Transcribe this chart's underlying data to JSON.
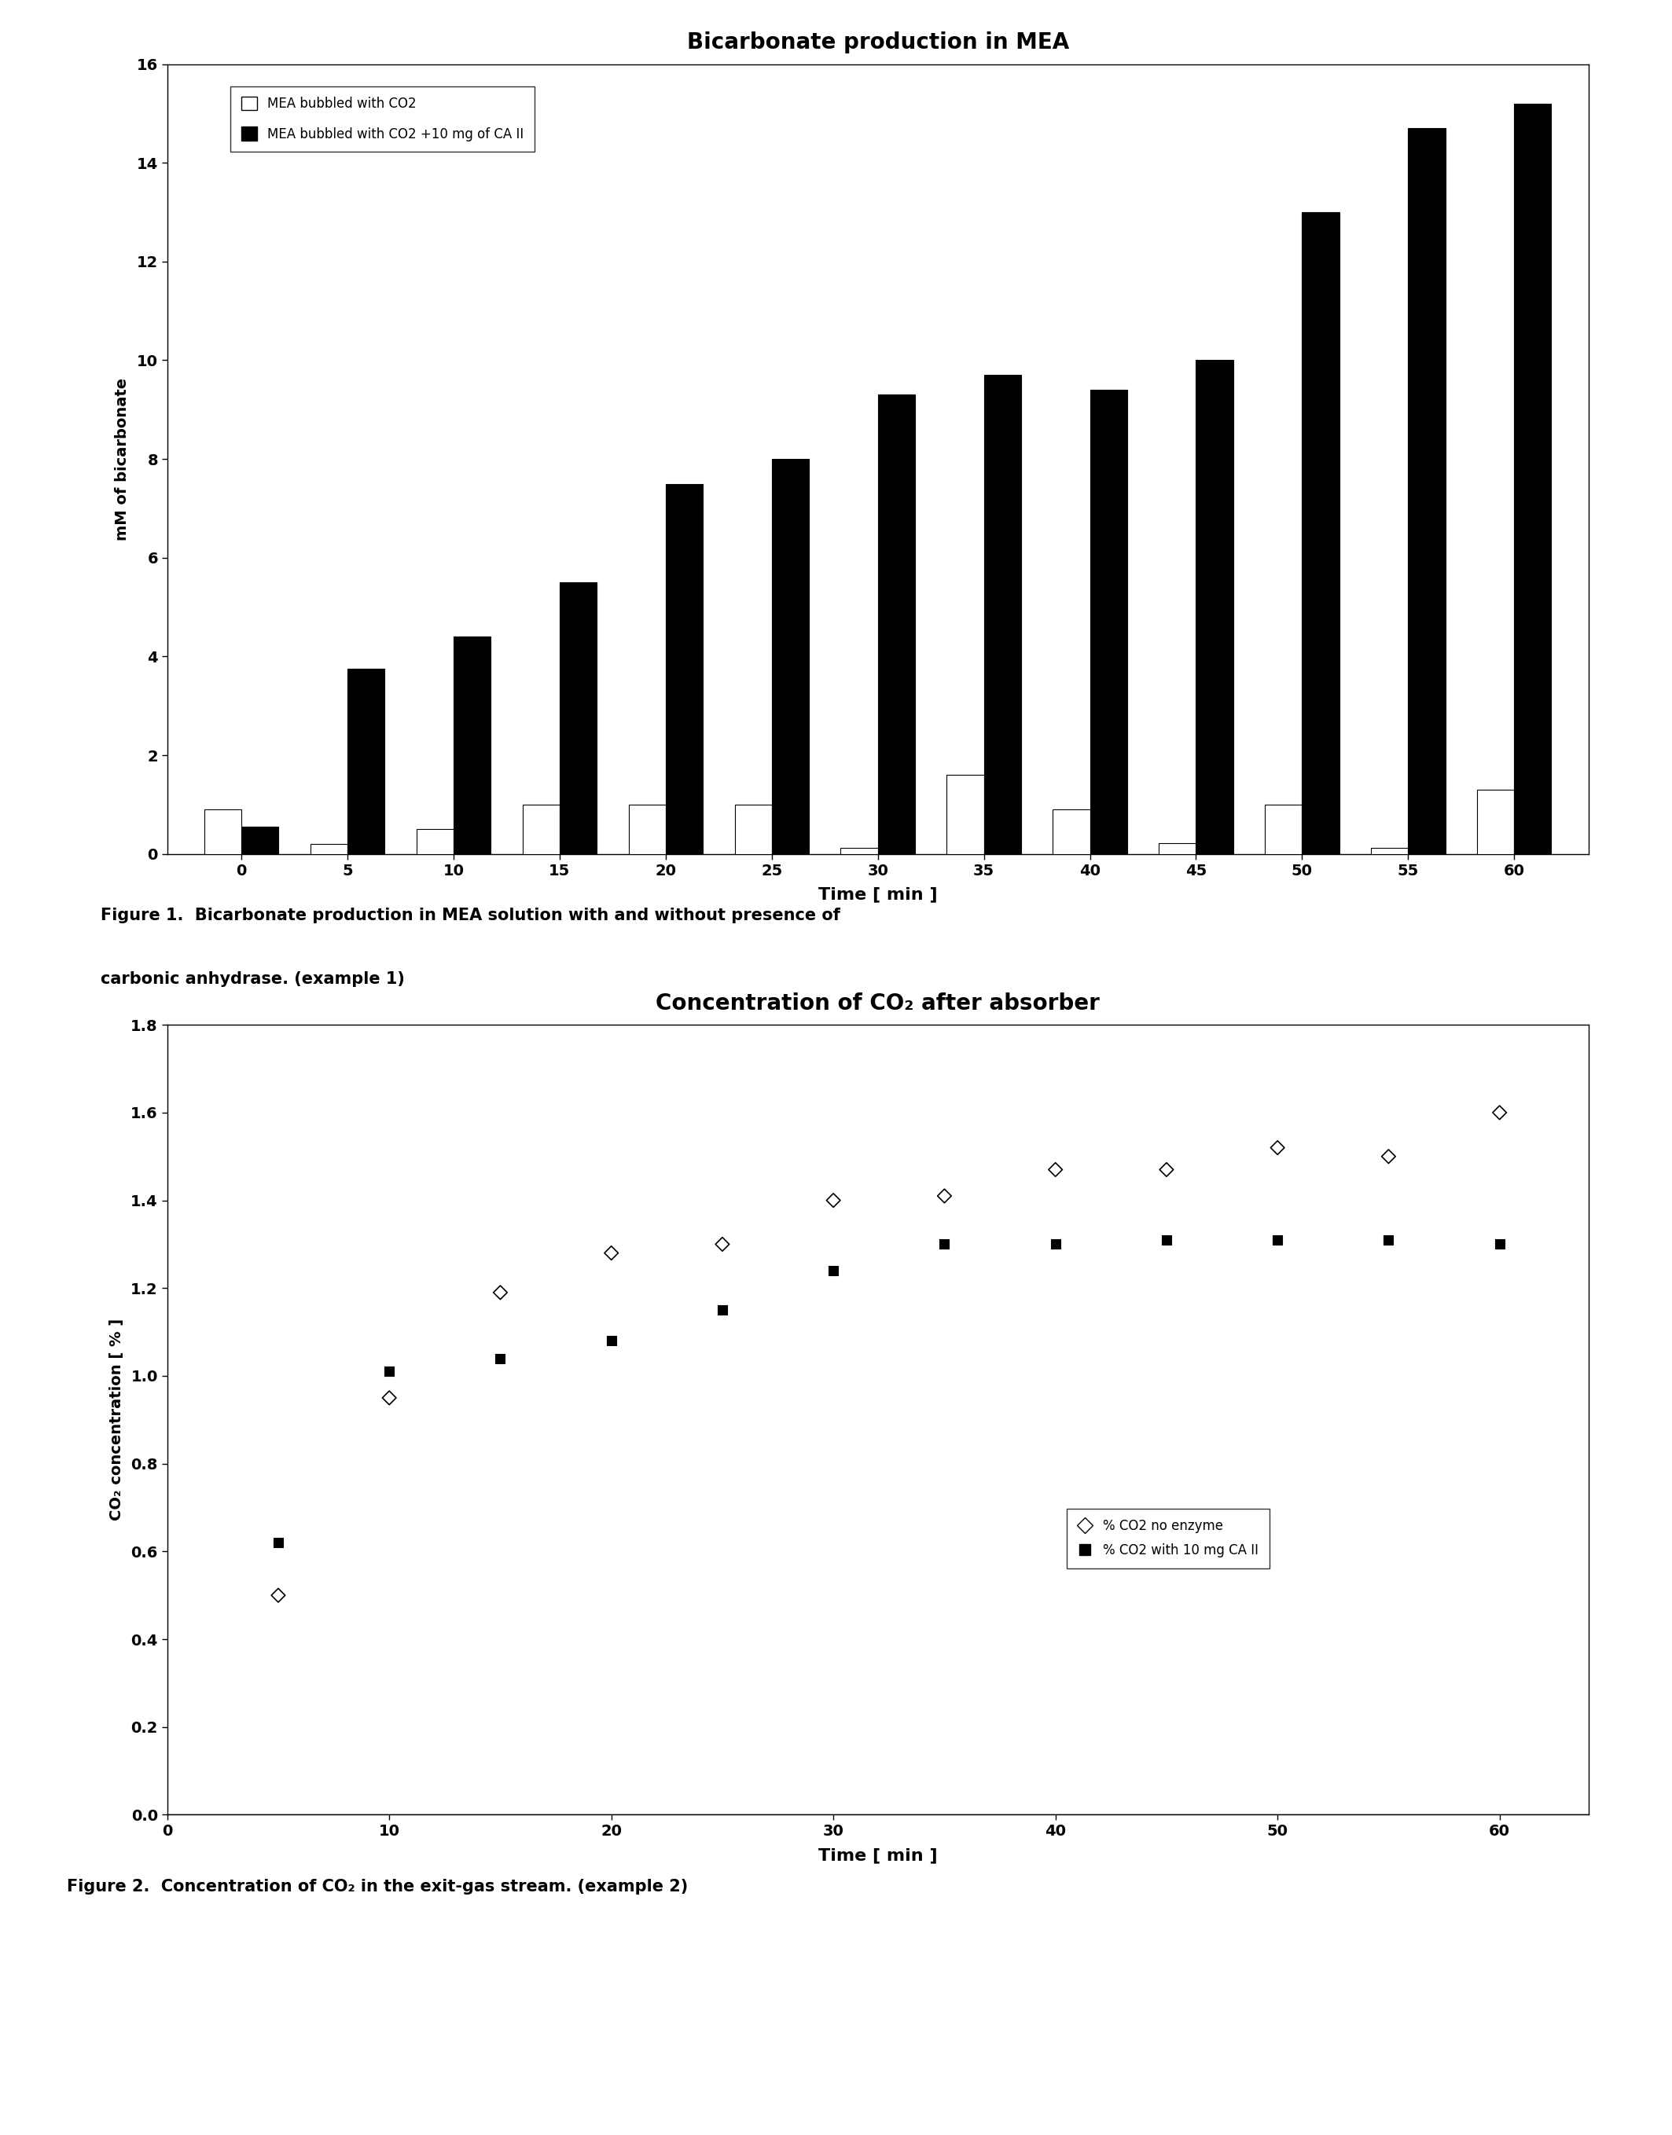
{
  "chart1": {
    "title": "Bicarbonate production in MEA",
    "xlabel": "Time [ min ]",
    "ylabel": "mM of bicarbonate",
    "times": [
      0,
      5,
      10,
      15,
      20,
      25,
      30,
      35,
      40,
      45,
      50,
      55,
      60
    ],
    "white_bars": [
      0.9,
      0.2,
      0.5,
      1.0,
      1.0,
      1.0,
      0.12,
      1.6,
      0.9,
      0.22,
      1.0,
      0.12,
      1.3
    ],
    "black_bars": [
      0.55,
      3.75,
      4.4,
      5.5,
      7.5,
      8.0,
      9.3,
      9.7,
      9.4,
      10.0,
      13.0,
      14.7,
      15.2
    ],
    "ylim": [
      0,
      16
    ],
    "yticks": [
      0,
      2,
      4,
      6,
      8,
      10,
      12,
      14,
      16
    ],
    "legend1": "MEA bubbled with CO2",
    "legend2": "MEA bubbled with CO2 +10 mg of CA II",
    "bar_width": 0.35
  },
  "chart2": {
    "title": "Concentration of CO₂ after absorber",
    "xlabel": "Time [ min ]",
    "ylabel": "CO₂ concentration [ % ]",
    "times_diamond": [
      5,
      10,
      15,
      20,
      25,
      30,
      35,
      40,
      45,
      50,
      55,
      60
    ],
    "values_diamond": [
      0.5,
      0.95,
      1.19,
      1.28,
      1.3,
      1.4,
      1.41,
      1.47,
      1.47,
      1.52,
      1.5,
      1.6
    ],
    "times_square": [
      5,
      10,
      15,
      20,
      25,
      30,
      35,
      40,
      45,
      50,
      55,
      60
    ],
    "values_square": [
      0.62,
      1.01,
      1.04,
      1.08,
      1.15,
      1.24,
      1.3,
      1.3,
      1.31,
      1.31,
      1.31,
      1.3
    ],
    "ylim": [
      0.0,
      1.8
    ],
    "yticks": [
      0.0,
      0.2,
      0.4,
      0.6,
      0.8,
      1.0,
      1.2,
      1.4,
      1.6,
      1.8
    ],
    "xticks": [
      0,
      10,
      20,
      30,
      40,
      50,
      60
    ],
    "xlim": [
      0,
      64
    ],
    "legend_diamond": "% CO2 no enzyme",
    "legend_square": "% CO2 with 10 mg CA II"
  },
  "fig1_caption_line1": "Figure 1.  Bicarbonate production in MEA solution with and without presence of",
  "fig1_caption_line2": "carbonic anhydrase. (example 1)",
  "fig2_caption": "Figure 2.  Concentration of CO₂ in the exit-gas stream. (example 2)",
  "background_color": "#ffffff"
}
